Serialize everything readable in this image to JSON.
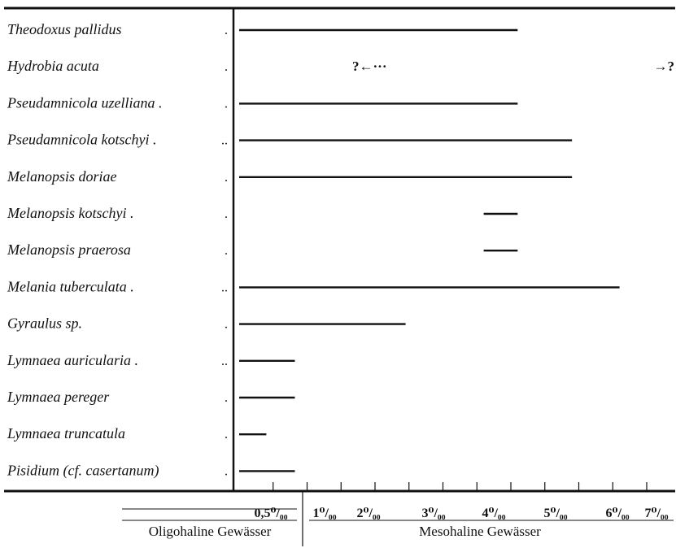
{
  "chart_data": {
    "type": "range",
    "x_ticks": [
      "0,5⁰/₀₀",
      "1⁰/₀₀",
      "2⁰/₀₀",
      "3⁰/₀₀",
      "4⁰/₀₀",
      "5⁰/₀₀",
      "6⁰/₀₀",
      "7⁰/₀₀"
    ],
    "zones": [
      {
        "label": "Oligohaline Gewässer",
        "from": 0,
        "to": 1
      },
      {
        "label": "Mesohaline Gewässer",
        "from": 1,
        "to": 7
      }
    ],
    "series": [
      {
        "name": "Theodoxus pallidus",
        "dots": ".",
        "from": 0,
        "to": 4.1
      },
      {
        "name": "Hydrobia acuta",
        "dots": ".",
        "from": null,
        "to": null,
        "note_left": "?←···",
        "note_right": "→?"
      },
      {
        "name": "Pseudamnicola uzelliana .",
        "dots": ".",
        "from": 0,
        "to": 4.1
      },
      {
        "name": "Pseudamnicola kotschyi .",
        "dots": "..",
        "from": 0,
        "to": 4.9
      },
      {
        "name": "Melanopsis doriae",
        "dots": ".",
        "from": 0,
        "to": 4.9
      },
      {
        "name": "Melanopsis kotschyi .",
        "dots": ".",
        "from": 3.6,
        "to": 4.1
      },
      {
        "name": "Melanopsis praerosa",
        "dots": ".",
        "from": 3.6,
        "to": 4.1
      },
      {
        "name": "Melania tuberculata .",
        "dots": "..",
        "from": 0,
        "to": 5.6
      },
      {
        "name": "Gyraulus sp.",
        "dots": ".",
        "from": 0,
        "to": 2.45
      },
      {
        "name": "Lymnaea auricularia .",
        "dots": "..",
        "from": 0,
        "to": 0.82
      },
      {
        "name": "Lymnaea pereger",
        "dots": ".",
        "from": 0,
        "to": 0.82
      },
      {
        "name": "Lymnaea truncatula",
        "dots": ".",
        "from": 0,
        "to": 0.4
      },
      {
        "name": "Pisidium (cf. casertanum)",
        "dots": ".",
        "from": 0,
        "to": 0.82
      }
    ]
  }
}
